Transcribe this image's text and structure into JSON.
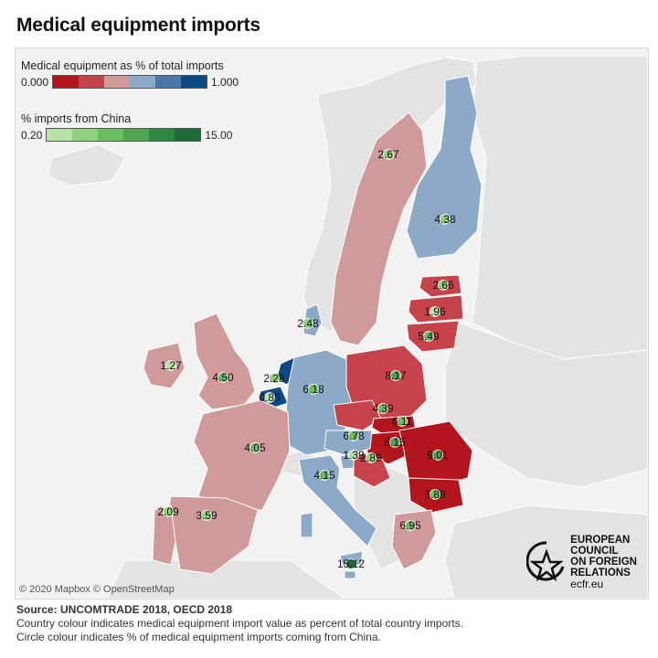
{
  "title": "Medical equipment imports",
  "legend_share": {
    "title": "Medical equipment as % of total imports",
    "min": "0.000",
    "max": "1.000",
    "colors": [
      "#b2151c",
      "#c7434b",
      "#d09a9a",
      "#8da9c8",
      "#4877a8",
      "#0c4a84"
    ]
  },
  "legend_china": {
    "title": "% imports from China",
    "min": "0.20",
    "max": "15.00",
    "colors": [
      "#b7e3a6",
      "#8fd17d",
      "#6cbf61",
      "#4fa552",
      "#2f8744",
      "#1f6b38"
    ]
  },
  "map_colors": {
    "sea": "#f2f2f2",
    "land_other": "#e3e3e3",
    "border": "#ffffff"
  },
  "countries": [
    {
      "name": "Sweden",
      "label": "2.67",
      "fill": "#d09a9a",
      "circle": "#8fd17d"
    },
    {
      "name": "Finland",
      "label": "4.38",
      "fill": "#8da9c8",
      "circle": "#8fd17d"
    },
    {
      "name": "Estonia",
      "label": "2.66",
      "fill": "#c7434b",
      "circle": "#8fd17d"
    },
    {
      "name": "Latvia",
      "label": "1.96",
      "fill": "#c7434b",
      "circle": "#b7e3a6"
    },
    {
      "name": "Lithuania",
      "label": "5.49",
      "fill": "#c7434b",
      "circle": "#6cbf61"
    },
    {
      "name": "Denmark",
      "label": "2.48",
      "fill": "#8da9c8",
      "circle": "#8fd17d"
    },
    {
      "name": "Ireland",
      "label": "1.27",
      "fill": "#d09a9a",
      "circle": "#b7e3a6"
    },
    {
      "name": "United Kingdom",
      "label": "4.50",
      "fill": "#d09a9a",
      "circle": "#6cbf61"
    },
    {
      "name": "Netherlands",
      "label": "2.28",
      "fill": "#0c4a84",
      "circle": "#8fd17d"
    },
    {
      "name": "Belgium",
      "label": "0.85",
      "fill": "#0c4a84",
      "circle": "#b7e3a6"
    },
    {
      "name": "Germany",
      "label": "6.18",
      "fill": "#8da9c8",
      "circle": "#6cbf61"
    },
    {
      "name": "Poland",
      "label": "8.17",
      "fill": "#c7434b",
      "circle": "#4fa552"
    },
    {
      "name": "Czechia",
      "label": "4.39",
      "fill": "#c7434b",
      "circle": "#6cbf61"
    },
    {
      "name": "Slovakia",
      "label": "6.11",
      "fill": "#b2151c",
      "circle": "#6cbf61"
    },
    {
      "name": "Hungary",
      "label": "8.15",
      "fill": "#b2151c",
      "circle": "#4fa552"
    },
    {
      "name": "Austria",
      "label": "6.78",
      "fill": "#8da9c8",
      "circle": "#6cbf61"
    },
    {
      "name": "Slovenia",
      "label": "1.39",
      "fill": "#8da9c8",
      "circle": "#b7e3a6"
    },
    {
      "name": "Croatia",
      "label": "2.89",
      "fill": "#c7434b",
      "circle": "#8fd17d"
    },
    {
      "name": "Romania",
      "label": "9.01",
      "fill": "#b2151c",
      "circle": "#4fa552"
    },
    {
      "name": "Bulgaria",
      "label": "3.88",
      "fill": "#b2151c",
      "circle": "#6cbf61"
    },
    {
      "name": "France",
      "label": "4.05",
      "fill": "#d09a9a",
      "circle": "#6cbf61"
    },
    {
      "name": "Italy",
      "label": "4.15",
      "fill": "#8da9c8",
      "circle": "#6cbf61"
    },
    {
      "name": "Spain",
      "label": "3.59",
      "fill": "#d09a9a",
      "circle": "#8fd17d"
    },
    {
      "name": "Portugal",
      "label": "2.09",
      "fill": "#d09a9a",
      "circle": "#8fd17d"
    },
    {
      "name": "Greece",
      "label": "6.95",
      "fill": "#d09a9a",
      "circle": "#6cbf61"
    },
    {
      "name": "Malta",
      "label": "15.12",
      "fill": "#8da9c8",
      "circle": "#1f6b38"
    }
  ],
  "attribution": "© 2020 Mapbox © OpenStreetMap",
  "logo": {
    "line1": "EUROPEAN",
    "line2": "COUNCIL",
    "line3": "ON FOREIGN",
    "line4": "RELATIONS",
    "url": "ecfr.eu"
  },
  "footer": {
    "source": "Source: UNCOMTRADE 2018, OECD 2018",
    "note1": "Country colour indicates medical equipment import value as percent of total country imports.",
    "note2": "Circle colour indicates % of medical equipment imports coming from China."
  }
}
